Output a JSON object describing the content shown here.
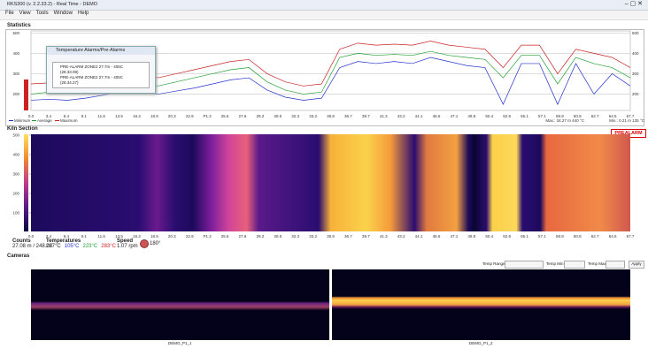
{
  "window_title": "RKS300 (v. 2.2.33.2) - Real Time - DEMO",
  "menu": [
    "File",
    "View",
    "Tools",
    "Window",
    "Help"
  ],
  "statistics": {
    "label": "Statistics",
    "yticks": [
      500,
      400,
      300,
      200
    ],
    "ylim": [
      120,
      510
    ],
    "xlabels": [
      "0.0",
      "3.4",
      "6.4",
      "9.1",
      "11.6",
      "13.5",
      "16.2",
      "18.9",
      "20.3",
      "22.9",
      "P1.2",
      "25.6",
      "27.6",
      "29.2",
      "30.6",
      "32.3",
      "33.2",
      "35.8",
      "36.7",
      "39.7",
      "41.3",
      "43.2",
      "44.1",
      "46.6",
      "47.1",
      "49.8",
      "50.4",
      "52.9",
      "55.1",
      "57.1",
      "58.9",
      "60.8",
      "62.7",
      "64.5",
      "67.7"
    ],
    "series": [
      {
        "name": "Minimum",
        "color": "#2233cc",
        "values": [
          170,
          175,
          170,
          180,
          195,
          220,
          215,
          200,
          215,
          230,
          250,
          270,
          280,
          220,
          185,
          170,
          180,
          330,
          360,
          350,
          360,
          350,
          380,
          360,
          340,
          330,
          150,
          350,
          350,
          150,
          350,
          200,
          300,
          240
        ]
      },
      {
        "name": "Average",
        "color": "#22a033",
        "values": [
          200,
          210,
          205,
          215,
          230,
          260,
          255,
          240,
          260,
          280,
          300,
          320,
          330,
          260,
          220,
          200,
          210,
          380,
          400,
          390,
          395,
          390,
          410,
          390,
          380,
          370,
          280,
          390,
          390,
          250,
          380,
          350,
          330,
          280
        ]
      },
      {
        "name": "Maximum",
        "color": "#cc2222",
        "values": [
          250,
          255,
          245,
          260,
          280,
          300,
          295,
          280,
          300,
          320,
          340,
          360,
          370,
          300,
          260,
          240,
          250,
          420,
          450,
          440,
          445,
          440,
          460,
          440,
          430,
          420,
          330,
          440,
          440,
          300,
          420,
          400,
          380,
          330
        ]
      }
    ],
    "max_note": "Max.: 34.27 m 440 °C",
    "min_note": "Min.: 0.21 m 135 °C"
  },
  "alarm_popup": {
    "title": "Temperature Alarms/Pre-Alarms",
    "lines": [
      "PRE-ALARM ZONE2 27.7m - 405C (28.33.08)",
      "PRE-ALARM ZONE2 27.7m - 405C (28.34.27)"
    ]
  },
  "kiln_section": {
    "label": "Kiln Section",
    "badge": "PREALARM",
    "yticks": [
      500,
      400,
      300,
      200,
      100
    ],
    "counts_label": "Counts",
    "counts_value": "27.08 m / 248.08",
    "temperatures_label": "Temperatures",
    "temperatures": [
      "227°C",
      "105°C",
      "223°C",
      "283°C"
    ],
    "speed_label": "Speed",
    "speed_value": "1.07 rpm",
    "angle": "180°"
  },
  "cameras": {
    "label": "Cameras",
    "temp_range": "Temp Range",
    "temp_min": "Temp Min",
    "temp_max": "Temp Max",
    "apply": "Apply",
    "names": [
      "DEMO_P1_1",
      "DEMO_P1_2"
    ]
  }
}
